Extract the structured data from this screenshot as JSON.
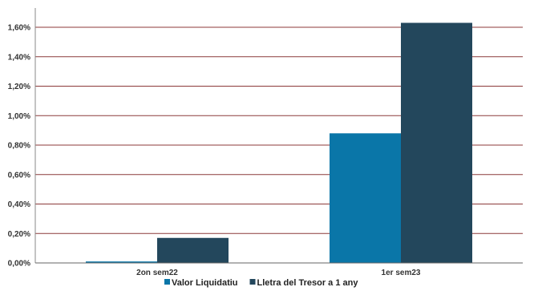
{
  "chart_data": {
    "type": "bar",
    "categories": [
      "2on sem22",
      "1er sem23"
    ],
    "series": [
      {
        "name": "Valor Liquidatiu",
        "values": [
          0.01,
          0.88
        ],
        "color": "#0a76a8"
      },
      {
        "name": "Lletra del Tresor a 1 any",
        "values": [
          0.17,
          1.63
        ],
        "color": "#23475c"
      }
    ],
    "ylim": [
      0,
      1.6
    ],
    "y_ticks": [
      "0,00%",
      "0,20%",
      "0,40%",
      "0,60%",
      "0,80%",
      "1,00%",
      "1,20%",
      "1,40%",
      "1,60%"
    ],
    "grid": true,
    "grid_color": "#8c3a3a",
    "legend_position": "bottom"
  }
}
